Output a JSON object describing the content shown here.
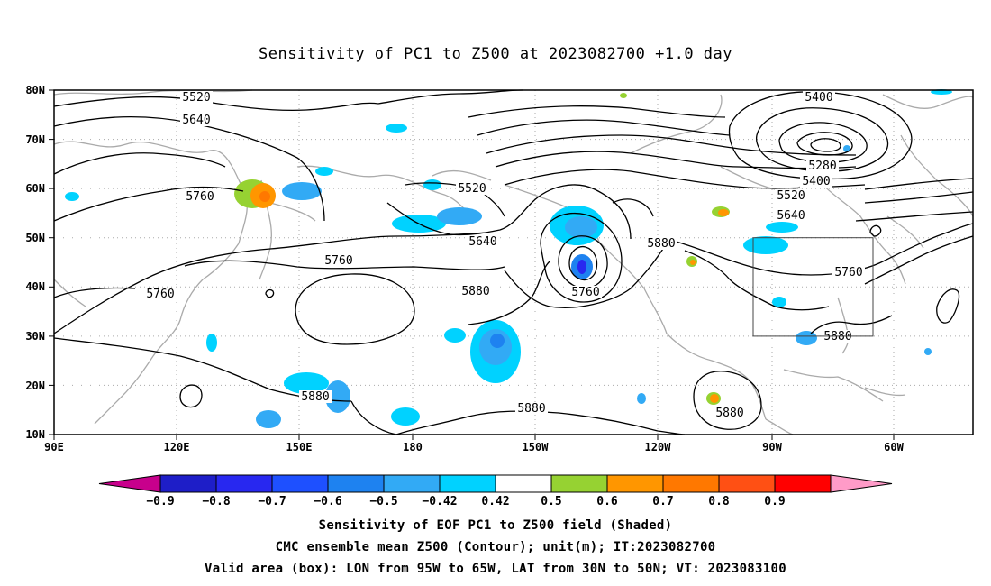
{
  "title": "Sensitivity of PC1 to Z500 at 2023082700 +1.0 day",
  "lat_labels": [
    "80N",
    "70N",
    "60N",
    "50N",
    "40N",
    "30N",
    "20N",
    "10N"
  ],
  "lon_labels": [
    "90E",
    "120E",
    "150E",
    "180",
    "150W",
    "120W",
    "90W",
    "60W"
  ],
  "contour_labels": [
    "5520",
    "5640",
    "5760",
    "5520",
    "5640",
    "5760",
    "5880",
    "5760",
    "5760",
    "5880",
    "5880",
    "5880",
    "5880",
    "5400",
    "5280",
    "5400",
    "5520",
    "5640",
    "5760",
    "5880"
  ],
  "colorbar": {
    "labels": [
      "-0.9",
      "-0.8",
      "-0.7",
      "-0.6",
      "-0.5",
      "-0.42",
      "0.42",
      "0.5",
      "0.6",
      "0.7",
      "0.8",
      "0.9"
    ],
    "colors": [
      "#c8008c",
      "#1e1ec8",
      "#2828f0",
      "#1e50ff",
      "#1e82f0",
      "#32aaf5",
      "#00d2ff",
      "#ffffff",
      "#96d232",
      "#ff9600",
      "#ff7800",
      "#ff5014",
      "#ff0000",
      "#ff9bc8"
    ]
  },
  "valid_box": {
    "lon_range": [
      "95W",
      "65W"
    ],
    "lat_range": [
      "30N",
      "50N"
    ]
  },
  "footer": {
    "line1": "Sensitivity of EOF PC1 to Z500 field (Shaded)",
    "line2": "CMC ensemble mean Z500 (Contour); unit(m); IT:2023082700",
    "line3": "Valid area (box): LON from 95W to 65W, LAT from 30N to 50N; VT: 2023083100"
  }
}
